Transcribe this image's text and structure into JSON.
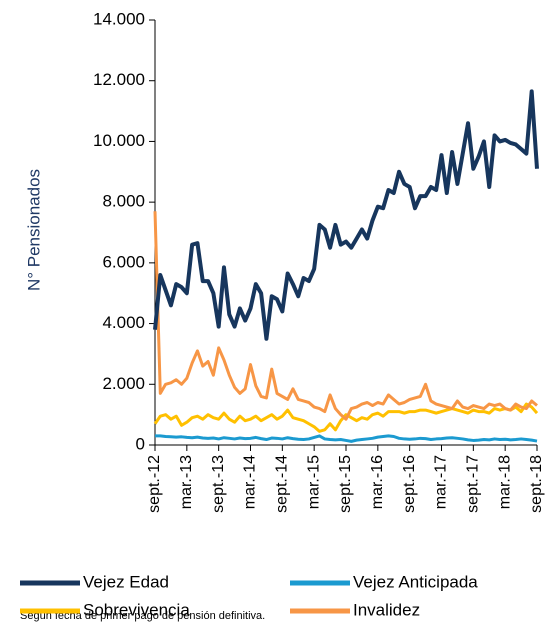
{
  "chart_data": {
    "type": "line",
    "categories": [
      "sept.-12",
      null,
      null,
      null,
      null,
      null,
      "mar.-13",
      null,
      null,
      null,
      null,
      null,
      "sept.-13",
      null,
      null,
      null,
      null,
      null,
      "mar.-14",
      null,
      null,
      null,
      null,
      null,
      "sept.-14",
      null,
      null,
      null,
      null,
      null,
      "mar.-15",
      null,
      null,
      null,
      null,
      null,
      "sept.-15",
      null,
      null,
      null,
      null,
      null,
      "mar.-16",
      null,
      null,
      null,
      null,
      null,
      "sept.-16",
      null,
      null,
      null,
      null,
      null,
      "mar.-17",
      null,
      null,
      null,
      null,
      null,
      "sept.-17",
      null,
      null,
      null,
      null,
      null,
      "mar.-18",
      null,
      null,
      null,
      null,
      null,
      "sept.-18"
    ],
    "series": [
      {
        "name": "Vejez Edad",
        "color": "#17365d",
        "values": [
          3800,
          5600,
          5100,
          4600,
          5300,
          5200,
          5000,
          6600,
          6650,
          5400,
          5400,
          5000,
          3900,
          5850,
          4300,
          3900,
          4500,
          4100,
          4500,
          5300,
          5000,
          3500,
          4900,
          4800,
          4400,
          5650,
          5300,
          4900,
          5500,
          5400,
          5800,
          7250,
          7100,
          6500,
          7250,
          6600,
          6700,
          6500,
          6800,
          7100,
          6800,
          7400,
          7850,
          7800,
          8400,
          8300,
          9000,
          8600,
          8500,
          7800,
          8200,
          8200,
          8500,
          8400,
          9550,
          8300,
          9650,
          8600,
          9600,
          10600,
          9100,
          9500,
          10000,
          8500,
          10200,
          10000,
          10050,
          9950,
          9900,
          9750,
          9600,
          11650,
          9100
        ]
      },
      {
        "name": "Vejez Anticipada",
        "color": "#1b9ad0",
        "values": [
          300,
          300,
          280,
          270,
          260,
          270,
          250,
          240,
          260,
          230,
          220,
          230,
          200,
          240,
          220,
          200,
          230,
          210,
          220,
          250,
          210,
          180,
          230,
          220,
          200,
          240,
          210,
          190,
          180,
          200,
          250,
          300,
          200,
          180,
          170,
          180,
          150,
          120,
          160,
          180,
          200,
          220,
          260,
          280,
          300,
          280,
          220,
          200,
          190,
          200,
          220,
          210,
          180,
          200,
          210,
          230,
          240,
          220,
          200,
          170,
          150,
          160,
          180,
          170,
          200,
          180,
          190,
          170,
          180,
          200,
          180,
          160,
          130
        ]
      },
      {
        "name": "Sobrevivencia",
        "color": "#ffc000",
        "values": [
          700,
          950,
          1000,
          850,
          950,
          650,
          750,
          900,
          950,
          850,
          1000,
          900,
          850,
          1050,
          850,
          750,
          950,
          800,
          850,
          950,
          800,
          900,
          1000,
          850,
          950,
          1150,
          900,
          850,
          800,
          700,
          600,
          450,
          500,
          700,
          500,
          800,
          1000,
          900,
          800,
          900,
          850,
          1000,
          1050,
          950,
          1100,
          1100,
          1100,
          1050,
          1100,
          1100,
          1150,
          1150,
          1100,
          1050,
          1100,
          1150,
          1200,
          1150,
          1100,
          1050,
          1150,
          1100,
          1100,
          1050,
          1200,
          1150,
          1200,
          1150,
          1250,
          1100,
          1350,
          1250,
          1050
        ]
      },
      {
        "name": "Invalidez",
        "color": "#f79646",
        "values": [
          7700,
          1700,
          2000,
          2050,
          2150,
          2000,
          2200,
          2700,
          3100,
          2600,
          2750,
          2300,
          3200,
          2800,
          2300,
          1900,
          1700,
          1850,
          2650,
          1950,
          1600,
          1550,
          2500,
          1700,
          1600,
          1500,
          1850,
          1500,
          1450,
          1400,
          1250,
          1200,
          1100,
          1650,
          1200,
          1000,
          850,
          1200,
          1250,
          1350,
          1400,
          1300,
          1400,
          1350,
          1650,
          1500,
          1350,
          1400,
          1500,
          1550,
          1600,
          2000,
          1450,
          1350,
          1300,
          1250,
          1200,
          1450,
          1250,
          1200,
          1300,
          1250,
          1200,
          1350,
          1300,
          1350,
          1200,
          1150,
          1350,
          1250,
          1200,
          1450,
          1300
        ]
      }
    ],
    "y_label": "N° Pensionados",
    "ylim": [
      0,
      14000
    ],
    "yticks": [
      0,
      {
        "value": 2000,
        "label": "2.000"
      },
      {
        "value": 4000,
        "label": "4.000"
      },
      {
        "value": 6000,
        "label": "6.000"
      },
      {
        "value": 8000,
        "label": "8.000"
      },
      {
        "value": 10000,
        "label": "10.000"
      },
      {
        "value": 12000,
        "label": "12.000"
      },
      {
        "value": 14000,
        "label": "14.000"
      }
    ],
    "note": "Según fecha de primer pago de pensión definitiva.",
    "grid": false
  }
}
